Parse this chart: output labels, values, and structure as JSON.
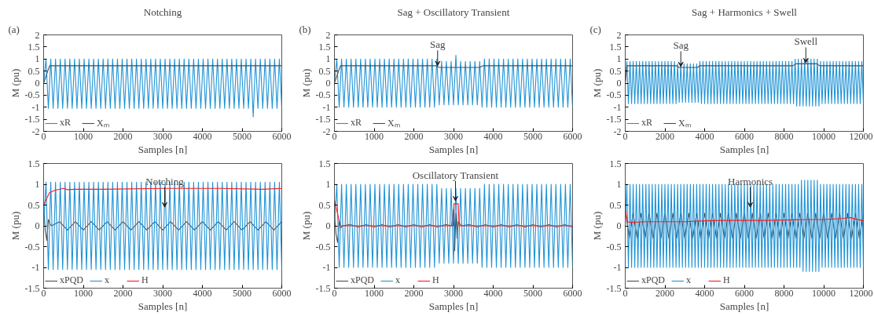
{
  "chart_data": [
    {
      "type": "line",
      "title": "Notching",
      "xlabel": "Samples [n]",
      "ylabel": "M (pu)",
      "xlim": [
        0,
        6000
      ],
      "ylim": [
        -2,
        2
      ],
      "xticks": [
        0,
        1000,
        2000,
        3000,
        4000,
        5000,
        6000
      ],
      "yticks": [
        -2,
        -1.5,
        -1,
        -0.5,
        0,
        0.5,
        1,
        1.5,
        2
      ],
      "legend": "bottom left",
      "annotations": [
        "(a)"
      ],
      "x": [
        0,
        60,
        120,
        180,
        240,
        300,
        360,
        420,
        480,
        540,
        600,
        660,
        720,
        780,
        840,
        900,
        960,
        1020,
        1080,
        1140,
        1200,
        1260,
        1320,
        1380,
        1440,
        1500,
        1560,
        1620,
        1680,
        1740,
        1800,
        1860,
        1920,
        1980,
        2040,
        2100,
        2160,
        2220,
        2280,
        2340,
        2400,
        2460,
        2520,
        2580,
        2640,
        2700,
        2760,
        2820,
        2880,
        2940,
        3000,
        3060,
        3120,
        3180,
        3240,
        3300,
        3360,
        3420,
        3480,
        3540,
        3600,
        3660,
        3720,
        3780,
        3840,
        3900,
        3960,
        4020,
        4080,
        4140,
        4200,
        4260,
        4320,
        4380,
        4440,
        4500,
        4560,
        4620,
        4680,
        4740,
        4800,
        4860,
        4920,
        4980,
        5040,
        5100,
        5160,
        5220,
        5280,
        5340,
        5400,
        5460,
        5520,
        5580,
        5640,
        5700,
        5760,
        5820,
        5880,
        5940,
        6000
      ],
      "series": [
        {
          "name": "xR",
          "color": "#1f93d6",
          "values": [
            0,
            1,
            -1.05,
            1,
            -1.05,
            1,
            -1.05,
            1,
            -1.05,
            1,
            -1.05,
            1,
            -1.05,
            1,
            -1.05,
            1,
            -1.05,
            1,
            -1.05,
            1,
            -1.05,
            1,
            -1.05,
            1,
            -1.05,
            1,
            -1.05,
            1,
            -1.05,
            1,
            -1.05,
            1,
            -1.05,
            1,
            -1.05,
            1,
            -1.05,
            1,
            -1.05,
            1,
            -1.05,
            1,
            -1.05,
            1,
            -1.05,
            1,
            -1.05,
            1,
            -1.05,
            1,
            -1.05,
            1,
            -1.05,
            1,
            -1.05,
            1,
            -1.05,
            1,
            -1.05,
            1,
            -1.05,
            1,
            -1.05,
            1,
            -1.05,
            1,
            -1.05,
            1,
            -1.05,
            1,
            -1.05,
            1,
            -1.05,
            1,
            -1.05,
            1,
            -1.05,
            1,
            -1.05,
            1,
            -1.05,
            1,
            -1.05,
            1,
            -1.05,
            1,
            -1.05,
            1,
            -1.4,
            1,
            -1.05,
            1,
            -1.05,
            1,
            -1.05,
            1,
            -1.05,
            1,
            -1.05,
            1,
            -1.05
          ]
        },
        {
          "name": "Xₘ",
          "color": "#4d4d4d",
          "x": [
            0,
            150,
            6000
          ],
          "values": [
            0,
            0.72,
            0.72
          ]
        }
      ]
    },
    {
      "type": "line",
      "title": "Sag + Oscillatory Transient",
      "xlabel": "Samples [n]",
      "ylabel": "M (pu)",
      "xlim": [
        0,
        6000
      ],
      "ylim": [
        -2,
        2
      ],
      "xticks": [
        0,
        1000,
        2000,
        3000,
        4000,
        5000,
        6000
      ],
      "yticks": [
        -2,
        -1.5,
        -1,
        -0.5,
        0,
        0.5,
        1,
        1.5,
        2
      ],
      "legend": "bottom left",
      "annotations": [
        "(b)",
        {
          "text": "Sag",
          "x": 2600,
          "y": 0.72
        }
      ],
      "x": [
        0,
        60,
        120,
        180,
        240,
        300,
        360,
        420,
        480,
        540,
        600,
        660,
        720,
        780,
        840,
        900,
        960,
        1020,
        1080,
        1140,
        1200,
        1260,
        1320,
        1380,
        1440,
        1500,
        1560,
        1620,
        1680,
        1740,
        1800,
        1860,
        1920,
        1980,
        2040,
        2100,
        2160,
        2220,
        2280,
        2340,
        2400,
        2460,
        2520,
        2580,
        2640,
        2700,
        2760,
        2820,
        2880,
        2940,
        3000,
        3060,
        3120,
        3180,
        3240,
        3300,
        3360,
        3420,
        3480,
        3540,
        3600,
        3660,
        3720,
        3780,
        3840,
        3900,
        3960,
        4020,
        4080,
        4140,
        4200,
        4260,
        4320,
        4380,
        4440,
        4500,
        4560,
        4620,
        4680,
        4740,
        4800,
        4860,
        4920,
        4980,
        5040,
        5100,
        5160,
        5220,
        5280,
        5340,
        5400,
        5460,
        5520,
        5580,
        5640,
        5700,
        5760,
        5820,
        5880,
        5940,
        6000
      ],
      "series": [
        {
          "name": "xR",
          "color": "#1f93d6",
          "values": [
            0,
            1,
            -1,
            1,
            -1,
            1,
            -1,
            1,
            -1,
            1,
            -1,
            1,
            -1,
            1,
            -1,
            1,
            -1,
            1,
            -1,
            1,
            -1,
            1,
            -1,
            1,
            -1,
            1,
            -1,
            1,
            -1,
            1,
            -1,
            1,
            -1,
            1,
            -1,
            1,
            -1,
            1,
            -1,
            1,
            -1,
            1,
            -1,
            1,
            -0.9,
            0.9,
            -0.9,
            0.9,
            -0.9,
            0.9,
            -0.9,
            1.15,
            -0.9,
            0.9,
            -0.9,
            0.9,
            -0.9,
            0.9,
            -0.9,
            0.9,
            -0.9,
            0.9,
            -1,
            1,
            -1,
            1,
            -1,
            1,
            -1,
            1,
            -1,
            1,
            -1,
            1,
            -1,
            1,
            -1,
            1,
            -1,
            1,
            -1,
            1,
            -1,
            1,
            -1,
            1,
            -1,
            1,
            -1,
            1,
            -1,
            1,
            -1,
            1,
            -1,
            1,
            -1,
            1,
            -1,
            1,
            -1
          ]
        },
        {
          "name": "Xₘ",
          "color": "#4d4d4d",
          "x": [
            0,
            150,
            2550,
            2650,
            3650,
            3750,
            6000
          ],
          "values": [
            0,
            0.72,
            0.72,
            0.65,
            0.65,
            0.72,
            0.72
          ]
        }
      ]
    },
    {
      "type": "line",
      "title": "Sag + Harmonics + Swell",
      "xlabel": "Samples [n]",
      "ylabel": "M (pu)",
      "xlim": [
        0,
        12000
      ],
      "ylim": [
        -2,
        2
      ],
      "xticks": [
        0,
        2000,
        4000,
        6000,
        8000,
        10000,
        12000
      ],
      "yticks": [
        -2,
        -1.5,
        -1,
        -0.5,
        0,
        0.5,
        1,
        1.5,
        2
      ],
      "legend": "bottom left",
      "annotations": [
        "(c)",
        {
          "text": "Sag",
          "x": 2800,
          "y": 0.68
        },
        {
          "text": "Swell",
          "x": 9100,
          "y": 0.84
        }
      ],
      "x": [
        0,
        80,
        160,
        240,
        320,
        400,
        480,
        560,
        640,
        720,
        800,
        880,
        960,
        1040,
        1120,
        1200,
        1280,
        1360,
        1440,
        1520,
        1600,
        1680,
        1760,
        1840,
        1920,
        2000,
        2080,
        2160,
        2240,
        2320,
        2400,
        2480,
        2560,
        2640,
        2720,
        2800,
        2880,
        2960,
        3040,
        3120,
        3200,
        3280,
        3360,
        3440,
        3520,
        3600,
        3680,
        3760,
        3840,
        3920,
        4000,
        4080,
        4160,
        4240,
        4320,
        4400,
        4480,
        4560,
        4640,
        4720,
        4800,
        4880,
        4960,
        5040,
        5120,
        5200,
        5280,
        5360,
        5440,
        5520,
        5600,
        5680,
        5760,
        5840,
        5920,
        6000,
        6080,
        6160,
        6240,
        6320,
        6400,
        6480,
        6560,
        6640,
        6720,
        6800,
        6880,
        6960,
        7040,
        7120,
        7200,
        7280,
        7360,
        7440,
        7520,
        7600,
        7680,
        7760,
        7840,
        7920,
        8000,
        8080,
        8160,
        8240,
        8320,
        8400,
        8480,
        8560,
        8640,
        8720,
        8800,
        8880,
        8960,
        9040,
        9120,
        9200,
        9280,
        9360,
        9440,
        9520,
        9600,
        9680,
        9760,
        9840,
        9920,
        10000,
        10080,
        10160,
        10240,
        10320,
        10400,
        10480,
        10560,
        10640,
        10720,
        10800,
        10880,
        10960,
        11040,
        11120,
        11200,
        11280,
        11360,
        11440,
        11520,
        11600,
        11680,
        11760,
        11840,
        11920,
        12000
      ],
      "series": [
        {
          "name": "xR",
          "color": "#1f93d6",
          "values": [
            0,
            0.9,
            -0.85,
            0.9,
            -0.85,
            0.9,
            -0.85,
            0.9,
            -0.85,
            0.9,
            -0.85,
            0.9,
            -0.85,
            0.9,
            -0.85,
            0.9,
            -0.85,
            0.9,
            -0.85,
            0.9,
            -0.85,
            0.9,
            -0.85,
            0.9,
            -0.85,
            0.9,
            -0.85,
            0.9,
            -0.85,
            0.9,
            -0.85,
            0.9,
            -0.85,
            0.8,
            -0.8,
            0.8,
            -0.8,
            0.8,
            -0.8,
            0.8,
            -0.8,
            0.8,
            -0.8,
            0.8,
            -0.8,
            0.8,
            -0.8,
            0.9,
            -0.85,
            0.9,
            -0.85,
            0.9,
            -0.85,
            0.9,
            -0.85,
            0.9,
            -0.85,
            0.9,
            -0.85,
            0.9,
            -0.85,
            0.9,
            -0.85,
            0.9,
            -0.85,
            0.9,
            -0.85,
            0.9,
            -0.85,
            0.9,
            -0.85,
            0.9,
            -0.85,
            0.9,
            -0.85,
            0.9,
            -0.85,
            0.9,
            -0.85,
            0.9,
            -0.85,
            0.9,
            -0.85,
            0.9,
            -0.85,
            0.9,
            -0.85,
            0.9,
            -0.85,
            0.9,
            -0.85,
            0.9,
            -0.85,
            0.9,
            -0.85,
            0.9,
            -0.85,
            0.9,
            -0.85,
            0.9,
            -0.85,
            0.9,
            -0.85,
            0.9,
            -0.85,
            0.9,
            -0.85,
            1,
            -0.95,
            1,
            -0.95,
            1,
            -0.95,
            1,
            -0.95,
            1,
            -0.95,
            1,
            -0.95,
            1,
            -0.95,
            1,
            -0.95,
            0.9,
            -0.85,
            0.9,
            -0.85,
            0.9,
            -0.85,
            0.9,
            -0.85,
            0.9,
            -0.85,
            0.9,
            -0.85,
            0.9,
            -0.85,
            0.9,
            -0.85,
            0.9,
            -0.85,
            0.9,
            -0.85,
            0.9,
            -0.85,
            0.9,
            -0.85,
            0.9,
            -0.85,
            0.9,
            -0.85
          ]
        },
        {
          "name": "Xₘ",
          "color": "#4d4d4d",
          "x": [
            0,
            100,
            2600,
            2700,
            3650,
            3750,
            8450,
            8600,
            9650,
            9800,
            12000
          ],
          "values": [
            0,
            0.72,
            0.72,
            0.65,
            0.65,
            0.72,
            0.72,
            0.8,
            0.8,
            0.72,
            0.72
          ]
        }
      ]
    },
    {
      "type": "line",
      "xlabel": "Samples [n]",
      "ylabel": "M (pu)",
      "xlim": [
        0,
        6000
      ],
      "ylim": [
        -1.5,
        1.5
      ],
      "xticks": [
        0,
        1000,
        2000,
        3000,
        4000,
        5000,
        6000
      ],
      "yticks": [
        -1.5,
        -1,
        -0.5,
        0,
        0.5,
        1,
        1.5
      ],
      "legend": "bottom left",
      "annotations": [
        {
          "text": "Notching",
          "x": 3050,
          "y": 0.45
        }
      ],
      "x": [
        0,
        60,
        120,
        180,
        240,
        300,
        360,
        420,
        480,
        540,
        600,
        660,
        720,
        780,
        840,
        900,
        960,
        1020,
        1080,
        1140,
        1200,
        1260,
        1320,
        1380,
        1440,
        1500,
        1560,
        1620,
        1680,
        1740,
        1800,
        1860,
        1920,
        1980,
        2040,
        2100,
        2160,
        2220,
        2280,
        2340,
        2400,
        2460,
        2520,
        2580,
        2640,
        2700,
        2760,
        2820,
        2880,
        2940,
        3000,
        3060,
        3120,
        3180,
        3240,
        3300,
        3360,
        3420,
        3480,
        3540,
        3600,
        3660,
        3720,
        3780,
        3840,
        3900,
        3960,
        4020,
        4080,
        4140,
        4200,
        4260,
        4320,
        4380,
        4440,
        4500,
        4560,
        4620,
        4680,
        4740,
        4800,
        4860,
        4920,
        4980,
        5040,
        5100,
        5160,
        5220,
        5280,
        5340,
        5400,
        5460,
        5520,
        5580,
        5640,
        5700,
        5760,
        5820,
        5880,
        5940,
        6000
      ],
      "series": [
        {
          "name": "xPQD",
          "color": "#4d4d4d",
          "x": [
            0,
            40,
            80,
            120,
            160,
            200,
            400,
            600,
            800,
            1000,
            1200,
            1400,
            1600,
            1800,
            2000,
            2200,
            2400,
            2600,
            2800,
            3000,
            3200,
            3400,
            3600,
            3800,
            4000,
            4200,
            4400,
            4600,
            4800,
            5000,
            5200,
            5400,
            5600,
            5800,
            6000
          ],
          "values": [
            0.5,
            -0.1,
            -0.35,
            0.15,
            0.05,
            0,
            0.1,
            -0.1,
            0.1,
            -0.1,
            0.1,
            -0.1,
            0.1,
            -0.1,
            0.1,
            -0.1,
            0.1,
            -0.1,
            0.1,
            -0.1,
            0.1,
            -0.1,
            0.1,
            -0.1,
            0.1,
            -0.1,
            0.1,
            -0.1,
            0.1,
            -0.1,
            0.1,
            -0.1,
            0.1,
            -0.1,
            0.1
          ]
        },
        {
          "name": "x",
          "color": "#1f93d6",
          "values": [
            0,
            1.05,
            -1.05,
            1.05,
            -1.05,
            1.05,
            -1.05,
            1.05,
            -1.05,
            1.05,
            -1.05,
            1.05,
            -1.05,
            1.05,
            -1.05,
            1.05,
            -1.05,
            1.05,
            -1.05,
            1.05,
            -1.05,
            1.05,
            -1.05,
            1.05,
            -1.05,
            1.05,
            -1.05,
            1.05,
            -1.05,
            1.05,
            -1.05,
            1.05,
            -1.05,
            1.05,
            -1.05,
            1.05,
            -1.05,
            1.05,
            -1.05,
            1.05,
            -1.05,
            1.05,
            -1.05,
            1.05,
            -1.05,
            1.05,
            -1.05,
            1.05,
            -1.05,
            1.05,
            -1.05,
            1.05,
            -1.05,
            1.05,
            -1.05,
            1.05,
            -1.05,
            1.05,
            -1.05,
            1.05,
            -1.05,
            1.05,
            -1.05,
            1.05,
            -1.05,
            1.05,
            -1.05,
            1.05,
            -1.05,
            1.05,
            -1.05,
            1.05,
            -1.05,
            1.05,
            -1.05,
            1.05,
            -1.05,
            1.05,
            -1.05,
            1.05,
            -1.05,
            1.05,
            -1.05,
            1.05,
            -1.05,
            1.05,
            -1.05,
            1.05,
            -1.05,
            1.05,
            -1.05,
            1.05,
            -1.05,
            1.05,
            -1.05,
            1.05,
            -1.05,
            1.05,
            -1.05,
            1.05,
            -1.05
          ]
        },
        {
          "name": "H",
          "color": "#ff1a1a",
          "x": [
            0,
            50,
            150,
            300,
            500,
            600,
            800,
            1500,
            3000,
            4500,
            5500,
            6000
          ],
          "values": [
            0.5,
            0.6,
            0.8,
            0.86,
            0.9,
            0.87,
            0.88,
            0.88,
            0.9,
            0.9,
            0.88,
            0.9
          ]
        }
      ]
    },
    {
      "type": "line",
      "xlabel": "Samples [n]",
      "ylabel": "M (pu)",
      "xlim": [
        0,
        6000
      ],
      "ylim": [
        -1.5,
        1.5
      ],
      "xticks": [
        0,
        1000,
        2000,
        3000,
        4000,
        5000,
        6000
      ],
      "yticks": [
        -1.5,
        -1,
        -0.5,
        0,
        0.5,
        1,
        1.5
      ],
      "legend": "bottom left",
      "annotations": [
        {
          "text": "Oscillatory Transient",
          "x": 3050,
          "y": 0.6
        }
      ],
      "x": [
        0,
        60,
        120,
        180,
        240,
        300,
        360,
        420,
        480,
        540,
        600,
        660,
        720,
        780,
        840,
        900,
        960,
        1020,
        1080,
        1140,
        1200,
        1260,
        1320,
        1380,
        1440,
        1500,
        1560,
        1620,
        1680,
        1740,
        1800,
        1860,
        1920,
        1980,
        2040,
        2100,
        2160,
        2220,
        2280,
        2340,
        2400,
        2460,
        2520,
        2580,
        2640,
        2700,
        2760,
        2820,
        2880,
        2940,
        3000,
        3060,
        3120,
        3180,
        3240,
        3300,
        3360,
        3420,
        3480,
        3540,
        3600,
        3660,
        3720,
        3780,
        3840,
        3900,
        3960,
        4020,
        4080,
        4140,
        4200,
        4260,
        4320,
        4380,
        4440,
        4500,
        4560,
        4620,
        4680,
        4740,
        4800,
        4860,
        4920,
        4980,
        5040,
        5100,
        5160,
        5220,
        5280,
        5340,
        5400,
        5460,
        5520,
        5580,
        5640,
        5700,
        5760,
        5820,
        5880,
        5940,
        6000
      ],
      "series": [
        {
          "name": "xPQD",
          "color": "#4d4d4d",
          "x": [
            0,
            40,
            80,
            120,
            160,
            200,
            400,
            600,
            800,
            1000,
            1200,
            1400,
            1600,
            1800,
            2000,
            2200,
            2400,
            2600,
            2800,
            2950,
            3000,
            3030,
            3060,
            3090,
            3120,
            3200,
            3400,
            3600,
            3800,
            4000,
            4200,
            4400,
            4600,
            4800,
            5000,
            5200,
            5400,
            5600,
            5800,
            6000
          ],
          "values": [
            0.3,
            -0.2,
            -0.4,
            0.1,
            -0.05,
            0,
            0.03,
            -0.03,
            0.03,
            -0.03,
            0.03,
            -0.03,
            0.03,
            -0.03,
            0.03,
            -0.03,
            0.03,
            -0.03,
            0.03,
            0,
            0.4,
            -0.6,
            0.3,
            -0.3,
            0.1,
            0,
            0.03,
            -0.03,
            0.03,
            -0.03,
            0.03,
            -0.03,
            0.03,
            -0.03,
            0.03,
            -0.03,
            0.03,
            -0.03,
            0.03,
            -0.03
          ]
        },
        {
          "name": "x",
          "color": "#1f93d6",
          "values": [
            0,
            1,
            -1,
            1,
            -1,
            1,
            -1,
            1,
            -1,
            1,
            -1,
            1,
            -1,
            1,
            -1,
            1,
            -1,
            1,
            -1,
            1,
            -1,
            1,
            -1,
            1,
            -1,
            1,
            -1,
            1,
            -1,
            1,
            -1,
            1,
            -1,
            1,
            -1,
            1,
            -1,
            1,
            -1,
            1,
            -1,
            1,
            -1,
            1,
            -0.9,
            0.9,
            -0.9,
            0.9,
            -0.9,
            0.9,
            -0.9,
            0.9,
            -0.9,
            0.9,
            -0.9,
            0.9,
            -0.9,
            0.9,
            -0.9,
            0.9,
            -0.9,
            0.9,
            -1,
            1,
            -1,
            1,
            -1,
            1,
            -1,
            1,
            -1,
            1,
            -1,
            1,
            -1,
            1,
            -1,
            1,
            -1,
            1,
            -1,
            1,
            -1,
            1,
            -1,
            1,
            -1,
            1,
            -1,
            1,
            -1,
            1,
            -1,
            1,
            -1,
            1,
            -1,
            1,
            -1,
            1,
            -1
          ]
        },
        {
          "name": "H",
          "color": "#ff1a1a",
          "x": [
            0,
            150,
            2990,
            3010,
            3120,
            3140,
            6000
          ],
          "values": [
            0.62,
            0,
            0,
            0.53,
            0.53,
            0,
            0
          ]
        }
      ]
    },
    {
      "type": "line",
      "xlabel": "Samples [n]",
      "ylabel": "M (pu)",
      "xlim": [
        0,
        12000
      ],
      "ylim": [
        -1.5,
        1.5
      ],
      "xticks": [
        0,
        2000,
        4000,
        6000,
        8000,
        10000,
        12000
      ],
      "yticks": [
        -1.5,
        -1,
        -0.5,
        0,
        0.5,
        1,
        1.5
      ],
      "legend": "bottom left",
      "annotations": [
        {
          "text": "Harmonics",
          "x": 6300,
          "y": 0.45
        }
      ],
      "x": [
        0,
        80,
        160,
        240,
        320,
        400,
        480,
        560,
        640,
        720,
        800,
        880,
        960,
        1040,
        1120,
        1200,
        1280,
        1360,
        1440,
        1520,
        1600,
        1680,
        1760,
        1840,
        1920,
        2000,
        2080,
        2160,
        2240,
        2320,
        2400,
        2480,
        2560,
        2640,
        2720,
        2800,
        2880,
        2960,
        3040,
        3120,
        3200,
        3280,
        3360,
        3440,
        3520,
        3600,
        3680,
        3760,
        3840,
        3920,
        4000,
        4080,
        4160,
        4240,
        4320,
        4400,
        4480,
        4560,
        4640,
        4720,
        4800,
        4880,
        4960,
        5040,
        5120,
        5200,
        5280,
        5360,
        5440,
        5520,
        5600,
        5680,
        5760,
        5840,
        5920,
        6000,
        6080,
        6160,
        6240,
        6320,
        6400,
        6480,
        6560,
        6640,
        6720,
        6800,
        6880,
        6960,
        7040,
        7120,
        7200,
        7280,
        7360,
        7440,
        7520,
        7600,
        7680,
        7760,
        7840,
        7920,
        8000,
        8080,
        8160,
        8240,
        8320,
        8400,
        8480,
        8560,
        8640,
        8720,
        8800,
        8880,
        8960,
        9040,
        9120,
        9200,
        9280,
        9360,
        9440,
        9520,
        9600,
        9680,
        9760,
        9840,
        9920,
        10000,
        10080,
        10160,
        10240,
        10320,
        10400,
        10480,
        10560,
        10640,
        10720,
        10800,
        10880,
        10960,
        11040,
        11120,
        11200,
        11280,
        11360,
        11440,
        11520,
        11600,
        11680,
        11760,
        11840,
        11920,
        12000
      ],
      "series": [
        {
          "name": "xPQD",
          "color": "#4d4d4d",
          "x": [
            0,
            200,
            400,
            600,
            800,
            1000,
            1200,
            1400,
            1600,
            1800,
            2000,
            2200,
            2400,
            2600,
            2800,
            3000,
            3200,
            3400,
            3600,
            3800,
            4000,
            4200,
            4400,
            4600,
            4800,
            5000,
            5200,
            5400,
            5600,
            5800,
            6000,
            6200,
            6400,
            6600,
            6800,
            7000,
            7200,
            7400,
            7600,
            7800,
            8000,
            8200,
            8400,
            8600,
            8800,
            9000,
            9200,
            9400,
            9600,
            9800,
            10000,
            10200,
            10400,
            10600,
            10800,
            11000,
            11200,
            11400,
            11600,
            11800,
            12000
          ],
          "values": [
            0.4,
            -0.3,
            0.3,
            -0.3,
            0.3,
            -0.3,
            0.3,
            -0.3,
            0.3,
            -0.3,
            0.3,
            -0.3,
            0.3,
            -0.3,
            0.3,
            -0.3,
            0.3,
            -0.3,
            0.3,
            -0.3,
            0.3,
            -0.3,
            0.3,
            -0.3,
            0.3,
            -0.3,
            0.3,
            -0.3,
            0.3,
            -0.3,
            0.3,
            -0.3,
            0.3,
            -0.3,
            0.3,
            -0.3,
            0.3,
            -0.3,
            0.3,
            -0.3,
            0.3,
            -0.3,
            0.3,
            -0.3,
            0.3,
            -0.3,
            0.3,
            -0.3,
            0.3,
            -0.3,
            0.3,
            -0.3,
            0.3,
            -0.3,
            0.3,
            -0.3,
            0.3,
            -0.3,
            0.3,
            -0.3,
            0.3
          ]
        },
        {
          "name": "x",
          "color": "#1f93d6",
          "values": [
            0,
            1,
            -1,
            1,
            -1,
            1,
            -1,
            1,
            -1,
            1,
            -1,
            1,
            -1,
            1,
            -1,
            1,
            -1,
            1,
            -1,
            1,
            -1,
            1,
            -1,
            1,
            -1,
            1,
            -1,
            1,
            -1,
            1,
            -1,
            1,
            -1,
            1,
            -1,
            1,
            -1,
            1,
            -1,
            1,
            -1,
            1,
            -1,
            1,
            -1,
            1,
            -1,
            1,
            -1,
            1,
            -1,
            1,
            -1,
            1,
            -1,
            1,
            -1,
            1,
            -1,
            1,
            -1,
            1,
            -1,
            1,
            -1,
            1,
            -1,
            1,
            -1,
            1,
            -1,
            1,
            -1,
            1,
            -1,
            1,
            -1,
            1,
            -1,
            1,
            -1,
            1,
            -1,
            1,
            -1,
            1,
            -1,
            1,
            -1,
            1,
            -1,
            1,
            -1,
            1,
            -1,
            1,
            -1,
            1,
            -1,
            1,
            -1,
            1,
            -1,
            1,
            -1,
            1,
            -1,
            1,
            -1,
            1,
            -1,
            1.1,
            -1.1,
            1.1,
            -1.1,
            1.1,
            -1.1,
            1.1,
            -1.1,
            1.1,
            -1.1,
            1.1,
            -1.1,
            1,
            -1,
            1,
            -1,
            1,
            -1,
            1,
            -1,
            1,
            -1,
            1,
            -1,
            1,
            -1,
            1,
            -1,
            1,
            -1,
            1,
            -1,
            1,
            -1,
            1,
            -1,
            1,
            -1,
            1,
            -1
          ]
        },
        {
          "name": "H",
          "color": "#ff1a1a",
          "x": [
            0,
            100,
            300,
            1000,
            2000,
            3000,
            4000,
            5000,
            6000,
            7000,
            8000,
            9000,
            10000,
            11000,
            11300,
            12000
          ],
          "values": [
            0.4,
            0.1,
            0.08,
            0.1,
            0.1,
            0.1,
            0.12,
            0.13,
            0.13,
            0.13,
            0.14,
            0.15,
            0.15,
            0.18,
            0.2,
            0.12
          ]
        }
      ]
    }
  ]
}
